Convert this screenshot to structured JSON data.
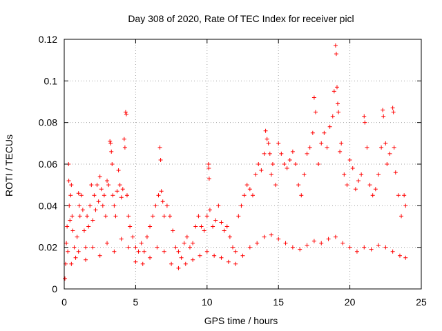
{
  "chart_data": {
    "type": "scatter",
    "title": "Day 308 of 2020, Rate Of TEC Index for receiver picl",
    "xlabel": "GPS time / hours",
    "ylabel": "ROTI / TECUs",
    "xlim": [
      0,
      25
    ],
    "ylim": [
      0,
      0.12
    ],
    "xticks": [
      0,
      5,
      10,
      15,
      20,
      25
    ],
    "yticks": [
      0,
      0.02,
      0.04,
      0.06,
      0.08,
      0.1,
      0.12
    ],
    "xtick_labels": [
      "0",
      "5",
      "10",
      "15",
      "20",
      "25"
    ],
    "ytick_labels": [
      "0",
      "0.02",
      "0.04",
      "0.06",
      "0.08",
      "0.1",
      "0.12"
    ],
    "grid": true,
    "marker": "+",
    "color": "#ff0000",
    "series": [
      {
        "points": [
          [
            0.05,
            0.005
          ],
          [
            0.1,
            0.012
          ],
          [
            0.15,
            0.022
          ],
          [
            0.2,
            0.03
          ],
          [
            0.25,
            0.018
          ],
          [
            0.3,
            0.06
          ],
          [
            0.32,
            0.052
          ],
          [
            0.35,
            0.04
          ],
          [
            0.4,
            0.033
          ],
          [
            0.45,
            0.045
          ],
          [
            0.5,
            0.05
          ],
          [
            0.55,
            0.035
          ],
          [
            0.6,
            0.028
          ],
          [
            0.7,
            0.02
          ],
          [
            0.8,
            0.015
          ],
          [
            0.9,
            0.025
          ],
          [
            1.0,
            0.046
          ],
          [
            1.05,
            0.04
          ],
          [
            1.1,
            0.035
          ],
          [
            1.2,
            0.045
          ],
          [
            1.3,
            0.038
          ],
          [
            1.4,
            0.028
          ],
          [
            1.5,
            0.02
          ],
          [
            1.6,
            0.035
          ],
          [
            1.7,
            0.03
          ],
          [
            1.8,
            0.04
          ],
          [
            1.9,
            0.05
          ],
          [
            2.0,
            0.033
          ],
          [
            2.1,
            0.045
          ],
          [
            2.2,
            0.038
          ],
          [
            2.3,
            0.05
          ],
          [
            2.4,
            0.042
          ],
          [
            2.5,
            0.054
          ],
          [
            2.6,
            0.048
          ],
          [
            2.7,
            0.04
          ],
          [
            2.8,
            0.045
          ],
          [
            2.9,
            0.035
          ],
          [
            3.0,
            0.052
          ],
          [
            3.1,
            0.05
          ],
          [
            3.2,
            0.071
          ],
          [
            3.25,
            0.07
          ],
          [
            3.3,
            0.066
          ],
          [
            3.35,
            0.06
          ],
          [
            3.4,
            0.045
          ],
          [
            3.5,
            0.04
          ],
          [
            3.6,
            0.035
          ],
          [
            3.7,
            0.047
          ],
          [
            3.8,
            0.057
          ],
          [
            3.9,
            0.05
          ],
          [
            4.0,
            0.044
          ],
          [
            4.1,
            0.048
          ],
          [
            4.2,
            0.072
          ],
          [
            4.25,
            0.068
          ],
          [
            4.3,
            0.085
          ],
          [
            4.35,
            0.084
          ],
          [
            4.4,
            0.045
          ],
          [
            4.5,
            0.035
          ],
          [
            4.6,
            0.03
          ],
          [
            4.8,
            0.025
          ],
          [
            5.0,
            0.02
          ],
          [
            5.2,
            0.018
          ],
          [
            5.4,
            0.022
          ],
          [
            5.6,
            0.018
          ],
          [
            5.8,
            0.025
          ],
          [
            6.0,
            0.03
          ],
          [
            6.2,
            0.035
          ],
          [
            6.4,
            0.04
          ],
          [
            6.6,
            0.045
          ],
          [
            6.7,
            0.068
          ],
          [
            6.75,
            0.062
          ],
          [
            6.8,
            0.047
          ],
          [
            6.9,
            0.042
          ],
          [
            7.0,
            0.035
          ],
          [
            7.2,
            0.04
          ],
          [
            7.4,
            0.035
          ],
          [
            7.6,
            0.028
          ],
          [
            7.8,
            0.02
          ],
          [
            8.0,
            0.018
          ],
          [
            8.2,
            0.015
          ],
          [
            8.4,
            0.022
          ],
          [
            8.6,
            0.025
          ],
          [
            8.8,
            0.02
          ],
          [
            9.0,
            0.022
          ],
          [
            9.2,
            0.03
          ],
          [
            9.4,
            0.035
          ],
          [
            9.6,
            0.03
          ],
          [
            9.8,
            0.028
          ],
          [
            10.0,
            0.035
          ],
          [
            10.1,
            0.06
          ],
          [
            10.12,
            0.058
          ],
          [
            10.15,
            0.053
          ],
          [
            10.2,
            0.038
          ],
          [
            10.4,
            0.03
          ],
          [
            10.6,
            0.033
          ],
          [
            10.8,
            0.04
          ],
          [
            11.0,
            0.032
          ],
          [
            11.2,
            0.028
          ],
          [
            11.4,
            0.03
          ],
          [
            11.6,
            0.025
          ],
          [
            11.8,
            0.02
          ],
          [
            12.0,
            0.018
          ],
          [
            12.2,
            0.035
          ],
          [
            12.4,
            0.04
          ],
          [
            12.6,
            0.045
          ],
          [
            12.8,
            0.05
          ],
          [
            13.0,
            0.048
          ],
          [
            13.2,
            0.045
          ],
          [
            13.4,
            0.055
          ],
          [
            13.6,
            0.06
          ],
          [
            13.8,
            0.057
          ],
          [
            14.0,
            0.065
          ],
          [
            14.1,
            0.076
          ],
          [
            14.2,
            0.072
          ],
          [
            14.3,
            0.07
          ],
          [
            14.4,
            0.065
          ],
          [
            14.5,
            0.055
          ],
          [
            14.6,
            0.06
          ],
          [
            14.8,
            0.05
          ],
          [
            15.0,
            0.07
          ],
          [
            15.2,
            0.065
          ],
          [
            15.4,
            0.06
          ],
          [
            15.6,
            0.058
          ],
          [
            15.8,
            0.062
          ],
          [
            16.0,
            0.066
          ],
          [
            16.2,
            0.06
          ],
          [
            16.4,
            0.05
          ],
          [
            16.6,
            0.045
          ],
          [
            16.8,
            0.055
          ],
          [
            17.0,
            0.065
          ],
          [
            17.2,
            0.068
          ],
          [
            17.4,
            0.075
          ],
          [
            17.5,
            0.092
          ],
          [
            17.6,
            0.085
          ],
          [
            17.8,
            0.06
          ],
          [
            18.0,
            0.07
          ],
          [
            18.2,
            0.075
          ],
          [
            18.4,
            0.068
          ],
          [
            18.6,
            0.078
          ],
          [
            18.8,
            0.083
          ],
          [
            18.9,
            0.095
          ],
          [
            19.0,
            0.117
          ],
          [
            19.05,
            0.113
          ],
          [
            19.1,
            0.097
          ],
          [
            19.15,
            0.089
          ],
          [
            19.2,
            0.085
          ],
          [
            19.3,
            0.066
          ],
          [
            19.4,
            0.07
          ],
          [
            19.6,
            0.055
          ],
          [
            19.8,
            0.05
          ],
          [
            20.0,
            0.062
          ],
          [
            20.2,
            0.058
          ],
          [
            20.4,
            0.048
          ],
          [
            20.6,
            0.052
          ],
          [
            20.8,
            0.055
          ],
          [
            21.0,
            0.083
          ],
          [
            21.05,
            0.08
          ],
          [
            21.2,
            0.068
          ],
          [
            21.4,
            0.05
          ],
          [
            21.6,
            0.045
          ],
          [
            21.8,
            0.048
          ],
          [
            22.0,
            0.055
          ],
          [
            22.2,
            0.068
          ],
          [
            22.3,
            0.086
          ],
          [
            22.35,
            0.083
          ],
          [
            22.5,
            0.07
          ],
          [
            22.6,
            0.06
          ],
          [
            22.8,
            0.065
          ],
          [
            23.0,
            0.087
          ],
          [
            23.05,
            0.085
          ],
          [
            23.1,
            0.068
          ],
          [
            23.2,
            0.056
          ],
          [
            23.4,
            0.045
          ],
          [
            23.6,
            0.035
          ],
          [
            23.8,
            0.045
          ],
          [
            23.9,
            0.04
          ],
          [
            0.5,
            0.012
          ],
          [
            1.0,
            0.018
          ],
          [
            1.5,
            0.014
          ],
          [
            2.0,
            0.02
          ],
          [
            2.5,
            0.016
          ],
          [
            3.0,
            0.022
          ],
          [
            3.5,
            0.018
          ],
          [
            4.0,
            0.024
          ],
          [
            4.5,
            0.02
          ],
          [
            5.0,
            0.013
          ],
          [
            5.5,
            0.012
          ],
          [
            6.0,
            0.015
          ],
          [
            6.5,
            0.02
          ],
          [
            7.0,
            0.018
          ],
          [
            7.5,
            0.012
          ],
          [
            8.0,
            0.01
          ],
          [
            8.5,
            0.012
          ],
          [
            9.0,
            0.014
          ],
          [
            9.5,
            0.016
          ],
          [
            10.0,
            0.018
          ],
          [
            10.5,
            0.016
          ],
          [
            11.0,
            0.015
          ],
          [
            11.5,
            0.013
          ],
          [
            12.0,
            0.012
          ],
          [
            12.5,
            0.016
          ],
          [
            13.0,
            0.02
          ],
          [
            13.5,
            0.022
          ],
          [
            14.0,
            0.025
          ],
          [
            14.5,
            0.026
          ],
          [
            15.0,
            0.024
          ],
          [
            15.5,
            0.022
          ],
          [
            16.0,
            0.02
          ],
          [
            16.5,
            0.019
          ],
          [
            17.0,
            0.021
          ],
          [
            17.5,
            0.023
          ],
          [
            18.0,
            0.022
          ],
          [
            18.5,
            0.024
          ],
          [
            19.0,
            0.025
          ],
          [
            19.5,
            0.022
          ],
          [
            20.0,
            0.02
          ],
          [
            20.5,
            0.018
          ],
          [
            21.0,
            0.02
          ],
          [
            21.5,
            0.019
          ],
          [
            22.0,
            0.021
          ],
          [
            22.5,
            0.02
          ],
          [
            23.0,
            0.018
          ],
          [
            23.5,
            0.016
          ],
          [
            23.9,
            0.015
          ]
        ]
      }
    ]
  }
}
